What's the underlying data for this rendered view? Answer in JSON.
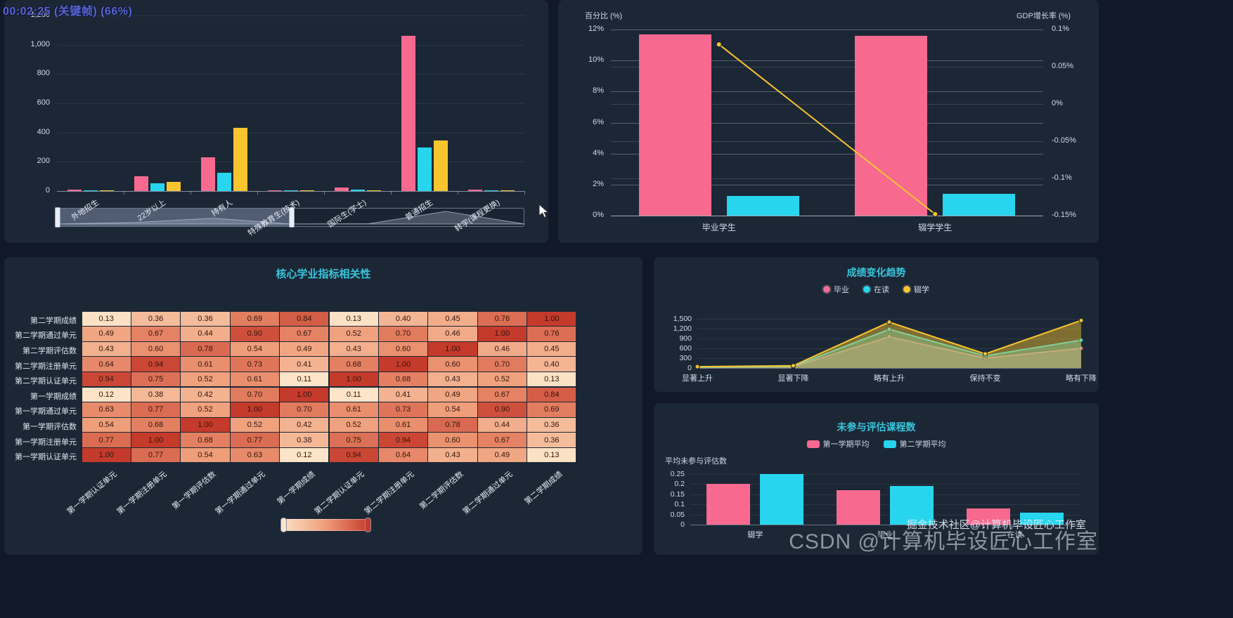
{
  "overlay": {
    "timestamp": "00:02:25 (关键帧) (66%)"
  },
  "watermarks": {
    "small": "掘金技术社区@计算机毕设匠心工作室",
    "large": "CSDN @计算机毕设匠心工作室"
  },
  "colors": {
    "pink": "#F7698F",
    "cyan": "#28D5EE",
    "yellow": "#F8C52E",
    "title": "#38C5DC",
    "axis_text": "#D3DBE8",
    "panel": "#1C2736",
    "page": "#111827",
    "heat_low": "#FCE3C8",
    "heat_mid": "#EF9C78",
    "heat_high": "#C43A2B"
  },
  "chart_data": [
    {
      "id": "enrollment_bar",
      "type": "bar",
      "categories": [
        "外地招生",
        "22岁以上",
        "持有人",
        "特殊教育生(技术)",
        "国际生(学士)",
        "普通招生",
        "转学(课程更换)"
      ],
      "series": [
        {
          "color": "pink",
          "values": [
            8,
            100,
            230,
            5,
            25,
            1060,
            10
          ]
        },
        {
          "color": "cyan",
          "values": [
            5,
            55,
            125,
            3,
            10,
            300,
            6
          ]
        },
        {
          "color": "yellow",
          "values": [
            4,
            62,
            430,
            2,
            5,
            345,
            4
          ]
        }
      ],
      "yticks": [
        0,
        200,
        400,
        600,
        800,
        1000,
        1200
      ],
      "ylim": [
        0,
        1200
      ],
      "datazoom": {
        "start": 0,
        "end": 50
      }
    },
    {
      "id": "percent_gdp",
      "type": "bar-line",
      "categories": [
        "毕业学生",
        "辍学学生"
      ],
      "left_axis": {
        "name": "百分比 (%)",
        "ticks": [
          "12%",
          "10%",
          "8%",
          "6%",
          "4%",
          "2%",
          "0%"
        ],
        "min": 0,
        "max": 12
      },
      "right_axis": {
        "name": "GDP增长率 (%)",
        "ticks": [
          "0.1%",
          "0.05%",
          "0%",
          "-0.05%",
          "-0.1%",
          "-0.15%"
        ],
        "min": -0.15,
        "max": 0.1
      },
      "bar_series": [
        {
          "color": "pink",
          "values": [
            11.7,
            11.6
          ]
        },
        {
          "color": "cyan",
          "values": [
            1.25,
            1.4
          ]
        }
      ],
      "line_series": {
        "color": "yellow",
        "values": [
          0.08,
          -0.148
        ]
      }
    },
    {
      "id": "correlation_heatmap",
      "type": "heatmap",
      "title": "核心学业指标相关性",
      "rows": [
        "第二学期成绩",
        "第二学期通过单元",
        "第二学期评估数",
        "第二学期注册单元",
        "第二学期认证单元",
        "第一学期成绩",
        "第一学期通过单元",
        "第一学期评估数",
        "第一学期注册单元",
        "第一学期认证单元"
      ],
      "columns": [
        "第一学期认证单元",
        "第一学期注册单元",
        "第一学期评估数",
        "第一学期通过单元",
        "第一学期成绩",
        "第二学期认证单元",
        "第二学期注册单元",
        "第二学期评估数",
        "第二学期通过单元",
        "第二学期成绩"
      ],
      "values": [
        [
          0.13,
          0.36,
          0.36,
          0.69,
          0.84,
          0.13,
          0.4,
          0.45,
          0.76,
          1.0
        ],
        [
          0.49,
          0.67,
          0.44,
          0.9,
          0.67,
          0.52,
          0.7,
          0.46,
          1.0,
          0.76
        ],
        [
          0.43,
          0.6,
          0.78,
          0.54,
          0.49,
          0.43,
          0.6,
          1.0,
          0.46,
          0.45
        ],
        [
          0.64,
          0.94,
          0.61,
          0.73,
          0.41,
          0.68,
          1.0,
          0.6,
          0.7,
          0.4
        ],
        [
          0.94,
          0.75,
          0.52,
          0.61,
          0.11,
          1.0,
          0.68,
          0.43,
          0.52,
          0.13
        ],
        [
          0.12,
          0.38,
          0.42,
          0.7,
          1.0,
          0.11,
          0.41,
          0.49,
          0.67,
          0.84
        ],
        [
          0.63,
          0.77,
          0.52,
          1.0,
          0.7,
          0.61,
          0.73,
          0.54,
          0.9,
          0.69
        ],
        [
          0.54,
          0.68,
          1.0,
          0.52,
          0.42,
          0.52,
          0.61,
          0.78,
          0.44,
          0.36
        ],
        [
          0.77,
          1.0,
          0.68,
          0.77,
          0.38,
          0.75,
          0.94,
          0.6,
          0.67,
          0.36
        ],
        [
          1.0,
          0.77,
          0.54,
          0.63,
          0.12,
          0.94,
          0.64,
          0.43,
          0.49,
          0.13
        ]
      ],
      "scale": {
        "min": 0.1,
        "max": 1.0
      }
    },
    {
      "id": "grade_trend",
      "type": "area",
      "title": "成绩变化趋势",
      "legend": [
        {
          "label": "毕业",
          "color": "pink"
        },
        {
          "label": "在读",
          "color": "cyan"
        },
        {
          "label": "辍学",
          "color": "yellow"
        }
      ],
      "categories": [
        "显著上升",
        "显著下降",
        "略有上升",
        "保持不变",
        "略有下降"
      ],
      "series": [
        {
          "name": "毕业",
          "color": "pink",
          "values": [
            15,
            35,
            950,
            300,
            600
          ]
        },
        {
          "name": "在读",
          "color": "cyan",
          "values": [
            25,
            50,
            1180,
            370,
            850
          ]
        },
        {
          "name": "辍学",
          "color": "yellow",
          "values": [
            40,
            70,
            1400,
            430,
            1450
          ]
        }
      ],
      "yticks": [
        0,
        300,
        600,
        900,
        1200,
        1500
      ],
      "ylim": [
        0,
        1500
      ]
    },
    {
      "id": "eval_courses",
      "type": "bar",
      "title": "未参与评估课程数",
      "ylabel": "平均未参与评估数",
      "legend": [
        {
          "label": "第一学期平均",
          "color": "pink"
        },
        {
          "label": "第二学期平均",
          "color": "cyan"
        }
      ],
      "categories": [
        "辍学",
        "毕业",
        "在读"
      ],
      "series": [
        {
          "color": "pink",
          "values": [
            0.2,
            0.17,
            0.08
          ]
        },
        {
          "color": "cyan",
          "values": [
            0.25,
            0.19,
            0.06
          ]
        }
      ],
      "yticks": [
        0,
        0.05,
        0.1,
        0.15,
        0.2,
        0.25
      ],
      "ylim": [
        0,
        0.25
      ]
    }
  ]
}
